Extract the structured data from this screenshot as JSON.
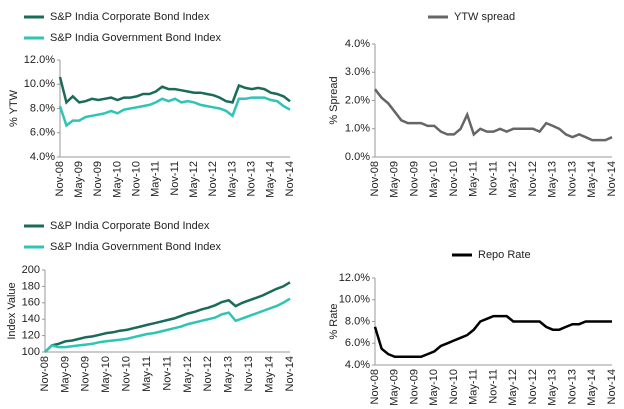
{
  "chart_data": [
    {
      "type": "line",
      "y_label": "% YTW",
      "categories": [
        "Nov-08",
        null,
        null,
        "May-09",
        null,
        null,
        "Nov-09",
        null,
        null,
        "May-10",
        null,
        null,
        "Nov-10",
        null,
        null,
        "May-11",
        null,
        null,
        "Nov-11",
        null,
        null,
        "May-12",
        null,
        null,
        "Nov-12",
        null,
        null,
        "May-13",
        null,
        null,
        "Nov-13",
        null,
        null,
        "May-14",
        null,
        null,
        "Nov-14"
      ],
      "series": [
        {
          "name": "S&P India Corporate Bond Index",
          "color": "#1a6b5a",
          "values": [
            10.6,
            8.5,
            9.0,
            8.5,
            8.6,
            8.8,
            8.7,
            8.8,
            8.9,
            8.7,
            8.9,
            8.9,
            9.0,
            9.2,
            9.2,
            9.4,
            9.8,
            9.6,
            9.6,
            9.5,
            9.4,
            9.3,
            9.3,
            9.2,
            9.1,
            8.9,
            8.6,
            8.5,
            9.9,
            9.7,
            9.6,
            9.7,
            9.6,
            9.3,
            9.2,
            9.0,
            8.6
          ]
        },
        {
          "name": "S&P India Government Bond Index",
          "color": "#2ec4b6",
          "values": [
            8.2,
            6.6,
            7.0,
            7.0,
            7.3,
            7.4,
            7.5,
            7.6,
            7.8,
            7.6,
            7.9,
            8.0,
            8.1,
            8.2,
            8.3,
            8.5,
            8.8,
            8.6,
            8.8,
            8.5,
            8.6,
            8.5,
            8.3,
            8.2,
            8.1,
            8.0,
            7.8,
            7.4,
            8.8,
            8.8,
            8.9,
            8.9,
            8.9,
            8.7,
            8.6,
            8.2,
            7.9
          ]
        }
      ],
      "ylim": [
        4,
        12
      ],
      "yticks": [
        {
          "value": 4,
          "label": "4.0%"
        },
        {
          "value": 6,
          "label": "6.0%"
        },
        {
          "value": 8,
          "label": "8.0%"
        },
        {
          "value": 10,
          "label": "10.0%"
        },
        {
          "value": 12,
          "label": "12.0%"
        }
      ]
    },
    {
      "type": "line",
      "y_label": "% Spread",
      "categories": [
        "Nov-08",
        null,
        null,
        "May-09",
        null,
        null,
        "Nov-09",
        null,
        null,
        "May-10",
        null,
        null,
        "Nov-10",
        null,
        null,
        "May-11",
        null,
        null,
        "Nov-11",
        null,
        null,
        "May-12",
        null,
        null,
        "Nov-12",
        null,
        null,
        "May-13",
        null,
        null,
        "Nov-13",
        null,
        null,
        "May-14",
        null,
        null,
        "Nov-14"
      ],
      "series": [
        {
          "name": "YTW spread",
          "color": "#666666",
          "values": [
            2.4,
            2.1,
            1.9,
            1.6,
            1.3,
            1.2,
            1.2,
            1.2,
            1.1,
            1.1,
            0.9,
            0.8,
            0.8,
            1.0,
            1.5,
            0.8,
            1.0,
            0.9,
            0.9,
            1.0,
            0.9,
            1.0,
            1.0,
            1.0,
            1.0,
            0.9,
            1.2,
            1.1,
            1.0,
            0.8,
            0.7,
            0.8,
            0.7,
            0.6,
            0.6,
            0.6,
            0.7
          ]
        }
      ],
      "ylim": [
        0,
        4
      ],
      "yticks": [
        {
          "value": 0,
          "label": "0.0%"
        },
        {
          "value": 1,
          "label": "1.0%"
        },
        {
          "value": 2,
          "label": "2.0%"
        },
        {
          "value": 3,
          "label": "3.0%"
        },
        {
          "value": 4,
          "label": "4.0%"
        }
      ]
    },
    {
      "type": "line",
      "y_label": "Index Value",
      "categories": [
        "Nov-08",
        null,
        null,
        "May-09",
        null,
        null,
        "Nov-09",
        null,
        null,
        "May-10",
        null,
        null,
        "Nov-10",
        null,
        null,
        "May-11",
        null,
        null,
        "Nov-11",
        null,
        null,
        "May-12",
        null,
        null,
        "Nov-12",
        null,
        null,
        "May-13",
        null,
        null,
        "Nov-13",
        null,
        null,
        "May-14",
        null,
        null,
        "Nov-14"
      ],
      "series": [
        {
          "name": "S&P India Corporate Bond Index",
          "color": "#1a6b5a",
          "values": [
            100,
            108,
            110,
            113,
            114,
            116,
            118,
            119,
            121,
            123,
            124,
            126,
            127,
            129,
            131,
            133,
            135,
            137,
            139,
            141,
            144,
            147,
            149,
            152,
            154,
            157,
            161,
            163,
            156,
            160,
            163,
            166,
            169,
            173,
            177,
            180,
            185
          ]
        },
        {
          "name": "S&P India Government Bond Index",
          "color": "#2ec4b6",
          "values": [
            100,
            108,
            106,
            106,
            107,
            108,
            109,
            110,
            112,
            113,
            114,
            115,
            116,
            118,
            120,
            122,
            123,
            125,
            127,
            129,
            131,
            134,
            136,
            138,
            140,
            142,
            146,
            148,
            138,
            141,
            144,
            147,
            150,
            153,
            156,
            160,
            165
          ]
        }
      ],
      "ylim": [
        100,
        200
      ],
      "yticks": [
        100,
        120,
        140,
        160,
        180,
        200
      ]
    },
    {
      "type": "line",
      "y_label": "% Rate",
      "categories": [
        "Nov-08",
        null,
        null,
        "May-09",
        null,
        null,
        "Nov-09",
        null,
        null,
        "May-10",
        null,
        null,
        "Nov-10",
        null,
        null,
        "May-11",
        null,
        null,
        "Nov-11",
        null,
        null,
        "May-12",
        null,
        null,
        "Nov-12",
        null,
        null,
        "May-13",
        null,
        null,
        "Nov-13",
        null,
        null,
        "May-14",
        null,
        null,
        "Nov-14"
      ],
      "series": [
        {
          "name": "Repo Rate",
          "color": "#000000",
          "values": [
            7.5,
            5.5,
            5.0,
            4.75,
            4.75,
            4.75,
            4.75,
            4.75,
            5.0,
            5.25,
            5.75,
            6.0,
            6.25,
            6.5,
            6.75,
            7.25,
            8.0,
            8.25,
            8.5,
            8.5,
            8.5,
            8.0,
            8.0,
            8.0,
            8.0,
            8.0,
            7.5,
            7.25,
            7.25,
            7.5,
            7.75,
            7.75,
            8.0,
            8.0,
            8.0,
            8.0,
            8.0
          ]
        }
      ],
      "ylim": [
        4,
        12
      ],
      "yticks": [
        {
          "value": 4,
          "label": "4.0%"
        },
        {
          "value": 6,
          "label": "6.0%"
        },
        {
          "value": 8,
          "label": "8.0%"
        },
        {
          "value": 10,
          "label": "10.0%"
        },
        {
          "value": 12,
          "label": "12.0%"
        }
      ]
    }
  ]
}
